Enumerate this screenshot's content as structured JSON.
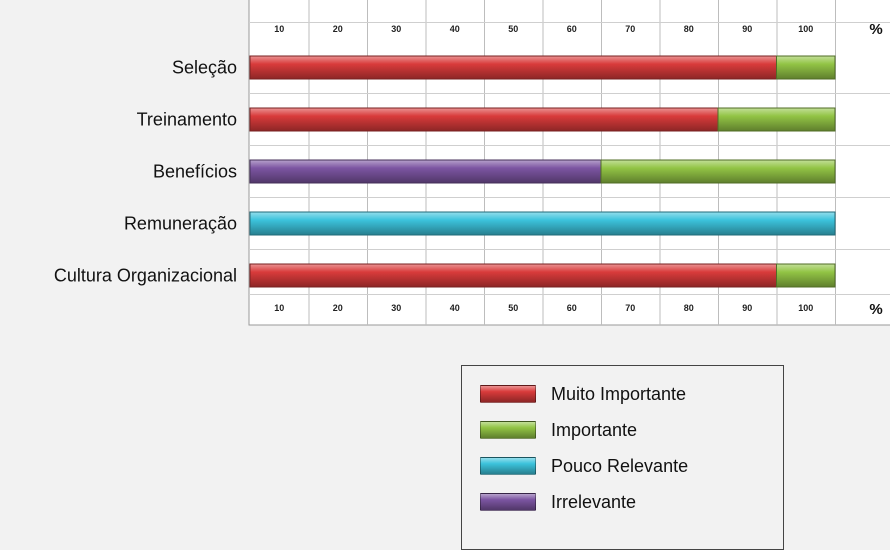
{
  "chart_data": {
    "type": "bar",
    "orientation": "horizontal",
    "stacked": true,
    "categories": [
      "Seleção",
      "Treinamento",
      "Benefícios",
      "Remuneração",
      "Cultura Organizacional"
    ],
    "series": [
      {
        "name": "Muito Importante",
        "values": [
          90,
          80,
          0,
          0,
          90
        ],
        "color": "#d93b3b"
      },
      {
        "name": "Importante",
        "values": [
          10,
          20,
          40,
          0,
          10
        ],
        "color": "#92c445"
      },
      {
        "name": "Pouco Relevante",
        "values": [
          0,
          0,
          0,
          100,
          0
        ],
        "color": "#3cc3dc"
      },
      {
        "name": "Irrelevante",
        "values": [
          0,
          0,
          60,
          0,
          0
        ],
        "color": "#7c55a2"
      }
    ],
    "stack_order": [
      "Irrelevante",
      "Muito Importante",
      "Pouco Relevante",
      "Importante"
    ],
    "x_ticks": [
      "10",
      "20",
      "30",
      "40",
      "50",
      "60",
      "70",
      "80",
      "90",
      "100"
    ],
    "x_unit": "%",
    "xlim": [
      0,
      100
    ],
    "axis_position": "top and bottom",
    "grid": true,
    "legend_position": "bottom-right"
  }
}
